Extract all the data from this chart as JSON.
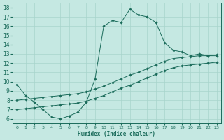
{
  "xlabel": "Humidex (Indice chaleur)",
  "xlim": [
    -0.5,
    23.5
  ],
  "ylim": [
    5.5,
    18.5
  ],
  "xticks": [
    0,
    1,
    2,
    3,
    4,
    5,
    6,
    7,
    8,
    9,
    10,
    11,
    12,
    13,
    14,
    15,
    16,
    17,
    18,
    19,
    20,
    21,
    22,
    23
  ],
  "yticks": [
    6,
    7,
    8,
    9,
    10,
    11,
    12,
    13,
    14,
    15,
    16,
    17,
    18
  ],
  "bg_color": "#c5e8e2",
  "grid_color": "#a8d4cc",
  "line_color": "#1a6b5a",
  "line1_x": [
    0,
    1,
    2,
    3,
    4,
    5,
    6,
    7,
    8,
    9,
    10,
    11,
    12,
    13,
    14,
    15,
    16,
    17,
    18,
    19,
    20,
    21,
    22,
    23
  ],
  "line1_y": [
    9.7,
    8.5,
    7.8,
    7.0,
    6.2,
    6.0,
    6.3,
    6.7,
    7.8,
    10.3,
    16.0,
    16.6,
    16.4,
    17.8,
    17.2,
    17.0,
    16.4,
    14.2,
    13.4,
    13.2,
    12.8,
    13.0,
    12.8,
    12.8
  ],
  "line2_x": [
    0,
    1,
    2,
    3,
    4,
    5,
    6,
    7,
    8,
    9,
    10,
    11,
    12,
    13,
    14,
    15,
    16,
    17,
    18,
    19,
    20,
    21,
    22,
    23
  ],
  "line2_y": [
    8.0,
    8.1,
    8.2,
    8.3,
    8.4,
    8.5,
    8.6,
    8.7,
    8.9,
    9.2,
    9.5,
    9.9,
    10.3,
    10.7,
    11.0,
    11.4,
    11.8,
    12.2,
    12.5,
    12.6,
    12.7,
    12.8,
    12.8,
    12.9
  ],
  "line3_x": [
    0,
    1,
    2,
    3,
    4,
    5,
    6,
    7,
    8,
    9,
    10,
    11,
    12,
    13,
    14,
    15,
    16,
    17,
    18,
    19,
    20,
    21,
    22,
    23
  ],
  "line3_y": [
    7.0,
    7.1,
    7.2,
    7.3,
    7.4,
    7.5,
    7.6,
    7.7,
    7.9,
    8.2,
    8.5,
    8.9,
    9.3,
    9.6,
    10.0,
    10.4,
    10.8,
    11.2,
    11.5,
    11.7,
    11.8,
    11.9,
    12.0,
    12.1
  ]
}
